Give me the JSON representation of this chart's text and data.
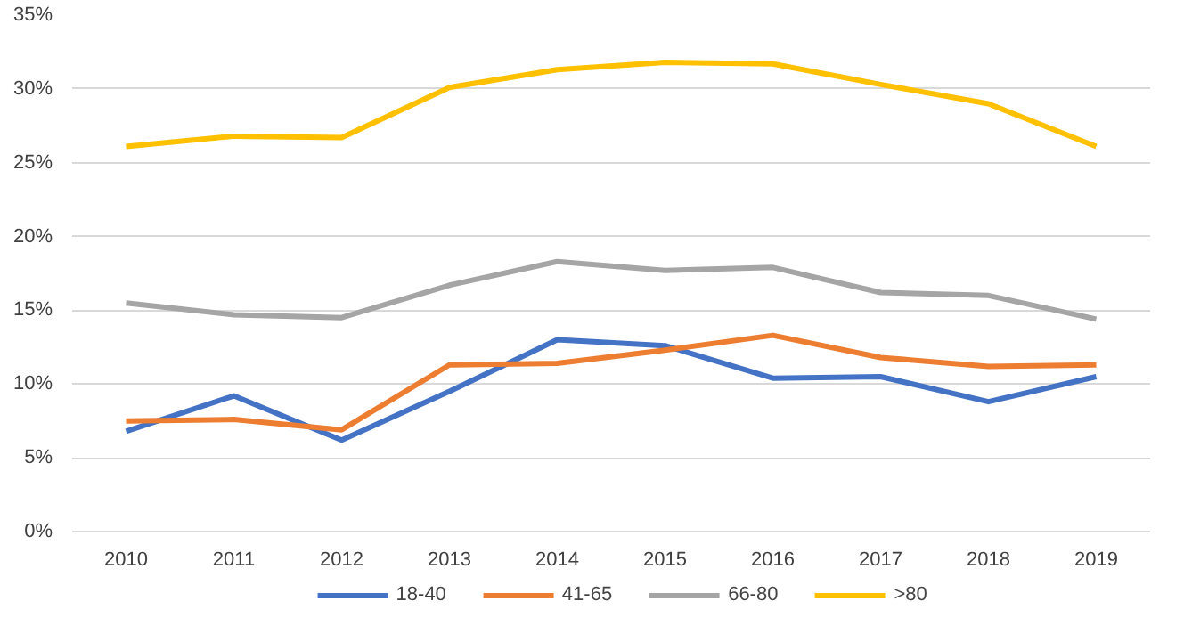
{
  "chart_data": {
    "type": "line",
    "categories": [
      "2010",
      "2011",
      "2012",
      "2013",
      "2014",
      "2015",
      "2016",
      "2017",
      "2018",
      "2019"
    ],
    "series": [
      {
        "name": "18-40",
        "color": "#4472c4",
        "values": [
          6.8,
          9.2,
          6.2,
          9.5,
          13.0,
          12.6,
          10.4,
          10.5,
          8.8,
          10.5
        ]
      },
      {
        "name": "41-65",
        "color": "#ed7d31",
        "values": [
          7.5,
          7.6,
          6.9,
          11.3,
          11.4,
          12.3,
          13.3,
          11.8,
          11.2,
          11.3
        ]
      },
      {
        "name": "66-80",
        "color": "#a5a5a5",
        "values": [
          15.5,
          14.7,
          14.5,
          16.7,
          18.3,
          17.7,
          17.9,
          16.2,
          16.0,
          14.4
        ]
      },
      {
        "name": ">80",
        "color": "#ffc000",
        "values": [
          26.1,
          26.8,
          26.7,
          30.1,
          31.3,
          31.8,
          31.7,
          30.3,
          29.0,
          26.1
        ]
      }
    ],
    "ylim": [
      0,
      35
    ],
    "yticks": [
      {
        "value": 0,
        "label": "0%"
      },
      {
        "value": 5,
        "label": "5%"
      },
      {
        "value": 10,
        "label": "10%"
      },
      {
        "value": 15,
        "label": "15%"
      },
      {
        "value": 20,
        "label": "20%"
      },
      {
        "value": 25,
        "label": "25%"
      },
      {
        "value": 30,
        "label": "30%"
      },
      {
        "value": 35,
        "label": "35%"
      }
    ],
    "grid": "y",
    "legend": "bottom",
    "marker": "none",
    "line_style": "solid"
  }
}
